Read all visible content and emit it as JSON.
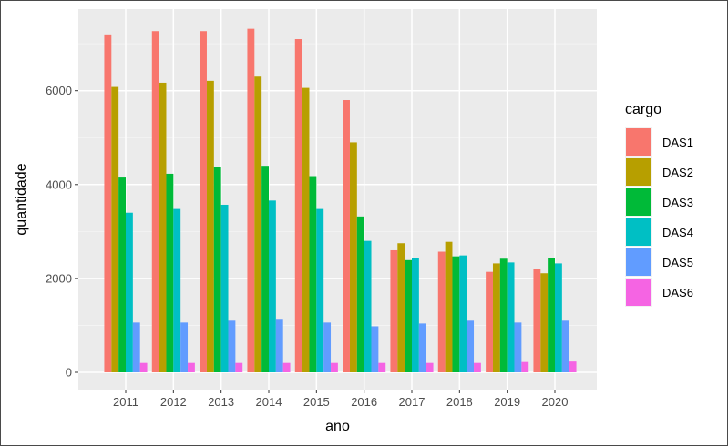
{
  "chart_data": {
    "type": "bar",
    "xlabel": "ano",
    "ylabel": "quantidade",
    "ylim": [
      0,
      7600
    ],
    "yticks": [
      0,
      2000,
      4000,
      6000
    ],
    "ytick_labels": [
      "0",
      "2000",
      "4000",
      "6000"
    ],
    "grid": true,
    "legend": {
      "title": "cargo",
      "placement": "right"
    },
    "categories": [
      "2011",
      "2012",
      "2013",
      "2014",
      "2015",
      "2016",
      "2017",
      "2018",
      "2019",
      "2020"
    ],
    "series": [
      {
        "name": "DAS1",
        "color": "#F8766D",
        "values": [
          7200,
          7270,
          7270,
          7320,
          7100,
          5800,
          2600,
          2570,
          2140,
          2200
        ]
      },
      {
        "name": "DAS2",
        "color": "#B79F00",
        "values": [
          6080,
          6170,
          6210,
          6300,
          6060,
          4900,
          2750,
          2780,
          2320,
          2110
        ]
      },
      {
        "name": "DAS3",
        "color": "#00BA38",
        "values": [
          4150,
          4230,
          4380,
          4400,
          4180,
          3320,
          2390,
          2470,
          2420,
          2430
        ]
      },
      {
        "name": "DAS4",
        "color": "#00BFC4",
        "values": [
          3400,
          3480,
          3570,
          3660,
          3480,
          2800,
          2440,
          2490,
          2340,
          2320
        ]
      },
      {
        "name": "DAS5",
        "color": "#619CFF",
        "values": [
          1060,
          1060,
          1100,
          1120,
          1060,
          980,
          1040,
          1100,
          1060,
          1100
        ]
      },
      {
        "name": "DAS6",
        "color": "#F564E3",
        "values": [
          200,
          200,
          200,
          200,
          200,
          200,
          200,
          200,
          220,
          230
        ]
      }
    ]
  }
}
